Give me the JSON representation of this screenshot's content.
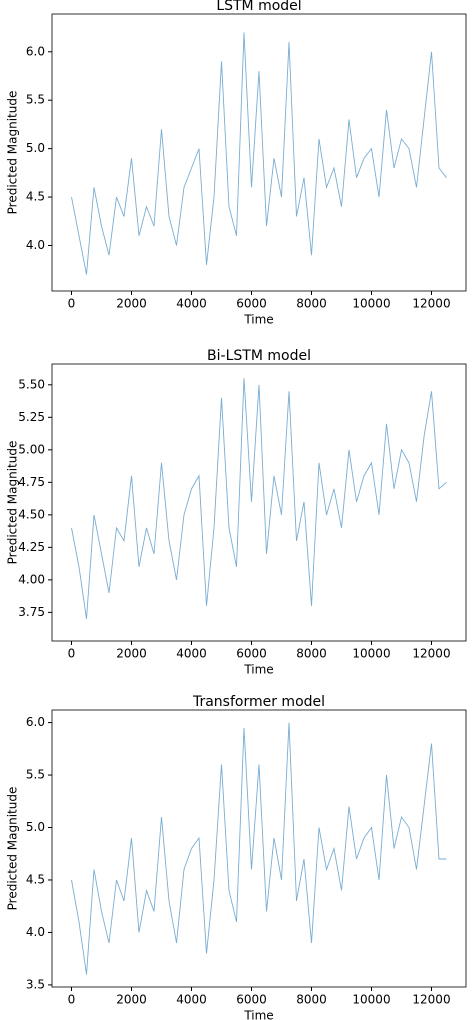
{
  "chart_data": [
    {
      "type": "line",
      "title": "LSTM model",
      "x_label": "Time",
      "y_label": "Predicted Magnitude",
      "x": [
        0,
        250,
        500,
        750,
        1000,
        1250,
        1500,
        1750,
        2000,
        2250,
        2500,
        2750,
        3000,
        3250,
        3500,
        3750,
        4000,
        4250,
        4500,
        4750,
        5000,
        5250,
        5500,
        5750,
        6000,
        6250,
        6500,
        6750,
        7000,
        7250,
        7500,
        7750,
        8000,
        8250,
        8500,
        8750,
        9000,
        9250,
        9500,
        9750,
        10000,
        10250,
        10500,
        10750,
        11000,
        11250,
        11500,
        11750,
        12000,
        12250,
        12500
      ],
      "series": [
        {
          "color": "#1f77b4",
          "values": [
            4.5,
            4.1,
            3.7,
            4.6,
            4.2,
            3.9,
            4.5,
            4.3,
            4.9,
            4.1,
            4.4,
            4.2,
            5.2,
            4.3,
            4.0,
            4.6,
            4.8,
            5.0,
            3.8,
            4.5,
            5.9,
            4.4,
            4.1,
            6.2,
            4.6,
            5.8,
            4.2,
            4.9,
            4.5,
            6.1,
            4.3,
            4.7,
            3.9,
            5.1,
            4.6,
            4.8,
            4.4,
            5.3,
            4.7,
            4.9,
            5.0,
            4.5,
            5.4,
            4.8,
            5.1,
            5.0,
            4.6,
            5.3,
            6.0,
            4.8,
            4.7
          ]
        }
      ],
      "xlim": [
        -650,
        13150
      ],
      "xticks": [
        0,
        2000,
        4000,
        6000,
        8000,
        10000,
        12000
      ],
      "ylim": [
        3.53,
        6.39
      ],
      "yticks": [
        {
          "value": 4.0,
          "label": "4.0"
        },
        {
          "value": 4.5,
          "label": "4.5"
        },
        {
          "value": 5.0,
          "label": "5.0"
        },
        {
          "value": 5.5,
          "label": "5.5"
        },
        {
          "value": 6.0,
          "label": "6.0"
        }
      ]
    },
    {
      "type": "line",
      "title": "Bi-LSTM model",
      "x_label": "Time",
      "y_label": "Predicted Magnitude",
      "x": [
        0,
        250,
        500,
        750,
        1000,
        1250,
        1500,
        1750,
        2000,
        2250,
        2500,
        2750,
        3000,
        3250,
        3500,
        3750,
        4000,
        4250,
        4500,
        4750,
        5000,
        5250,
        5500,
        5750,
        6000,
        6250,
        6500,
        6750,
        7000,
        7250,
        7500,
        7750,
        8000,
        8250,
        8500,
        8750,
        9000,
        9250,
        9500,
        9750,
        10000,
        10250,
        10500,
        10750,
        11000,
        11250,
        11500,
        11750,
        12000,
        12250,
        12500
      ],
      "series": [
        {
          "color": "#1f77b4",
          "values": [
            4.4,
            4.1,
            3.7,
            4.5,
            4.2,
            3.9,
            4.4,
            4.3,
            4.8,
            4.1,
            4.4,
            4.2,
            4.9,
            4.3,
            4.0,
            4.5,
            4.7,
            4.8,
            3.8,
            4.4,
            5.4,
            4.4,
            4.1,
            5.55,
            4.6,
            5.5,
            4.2,
            4.8,
            4.5,
            5.45,
            4.3,
            4.6,
            3.8,
            4.9,
            4.5,
            4.7,
            4.4,
            5.0,
            4.6,
            4.8,
            4.9,
            4.5,
            5.2,
            4.7,
            5.0,
            4.9,
            4.6,
            5.1,
            5.45,
            4.7,
            4.75
          ]
        }
      ],
      "xlim": [
        -650,
        13150
      ],
      "xticks": [
        0,
        2000,
        4000,
        6000,
        8000,
        10000,
        12000
      ],
      "ylim": [
        3.53,
        5.66
      ],
      "yticks": [
        {
          "value": 3.75,
          "label": "3.75"
        },
        {
          "value": 4.0,
          "label": "4.00"
        },
        {
          "value": 4.25,
          "label": "4.25"
        },
        {
          "value": 4.5,
          "label": "4.50"
        },
        {
          "value": 4.75,
          "label": "4.75"
        },
        {
          "value": 5.0,
          "label": "5.00"
        },
        {
          "value": 5.25,
          "label": "5.25"
        },
        {
          "value": 5.5,
          "label": "5.50"
        }
      ]
    },
    {
      "type": "line",
      "title": "Transformer model",
      "x_label": "Time",
      "y_label": "Predicted Magnitude",
      "x": [
        0,
        250,
        500,
        750,
        1000,
        1250,
        1500,
        1750,
        2000,
        2250,
        2500,
        2750,
        3000,
        3250,
        3500,
        3750,
        4000,
        4250,
        4500,
        4750,
        5000,
        5250,
        5500,
        5750,
        6000,
        6250,
        6500,
        6750,
        7000,
        7250,
        7500,
        7750,
        8000,
        8250,
        8500,
        8750,
        9000,
        9250,
        9500,
        9750,
        10000,
        10250,
        10500,
        10750,
        11000,
        11250,
        11500,
        11750,
        12000,
        12250,
        12500
      ],
      "series": [
        {
          "color": "#1f77b4",
          "values": [
            4.5,
            4.1,
            3.6,
            4.6,
            4.2,
            3.9,
            4.5,
            4.3,
            4.9,
            4.0,
            4.4,
            4.2,
            5.1,
            4.3,
            3.9,
            4.6,
            4.8,
            4.9,
            3.8,
            4.5,
            5.6,
            4.4,
            4.1,
            5.95,
            4.6,
            5.6,
            4.2,
            4.9,
            4.5,
            6.0,
            4.3,
            4.7,
            3.9,
            5.0,
            4.6,
            4.8,
            4.4,
            5.2,
            4.7,
            4.9,
            5.0,
            4.5,
            5.5,
            4.8,
            5.1,
            5.0,
            4.6,
            5.2,
            5.8,
            4.7,
            4.7
          ]
        }
      ],
      "xlim": [
        -650,
        13150
      ],
      "xticks": [
        0,
        2000,
        4000,
        6000,
        8000,
        10000,
        12000
      ],
      "ylim": [
        3.48,
        6.12
      ],
      "yticks": [
        {
          "value": 3.5,
          "label": "3.5"
        },
        {
          "value": 4.0,
          "label": "4.0"
        },
        {
          "value": 4.5,
          "label": "4.5"
        },
        {
          "value": 5.0,
          "label": "5.0"
        },
        {
          "value": 5.5,
          "label": "5.5"
        },
        {
          "value": 6.0,
          "label": "6.0"
        }
      ]
    }
  ]
}
